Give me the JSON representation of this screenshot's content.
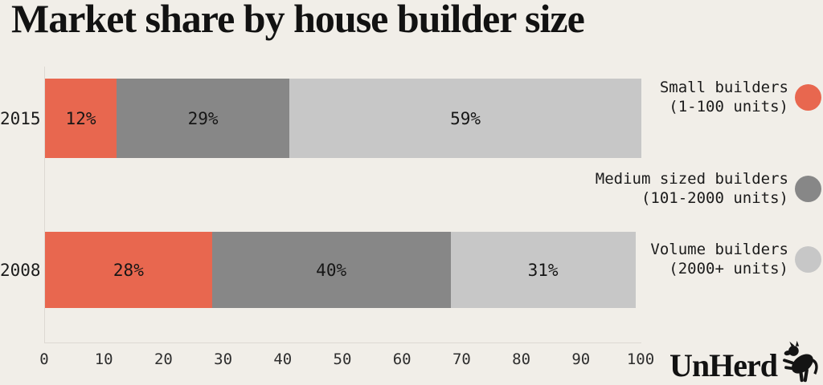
{
  "page": {
    "title": "Market share by house builder size",
    "background_color": "#F1EEE8"
  },
  "chart_data": {
    "type": "bar",
    "orientation": "horizontal",
    "stacked": true,
    "title": "Market share by house builder size",
    "categories": [
      "2015",
      "2008"
    ],
    "series": [
      {
        "name": "Small builders (1-100 units)",
        "color": "#E8674F",
        "values": [
          12,
          28
        ]
      },
      {
        "name": "Medium sized builders (101-2000 units)",
        "color": "#878787",
        "values": [
          29,
          40
        ]
      },
      {
        "name": "Volume builders (2000+ units)",
        "color": "#C7C7C7",
        "values": [
          59,
          31
        ]
      }
    ],
    "value_suffix": "%",
    "data_labels": [
      [
        "12%",
        "29%",
        "59%"
      ],
      [
        "28%",
        "40%",
        "31%"
      ]
    ],
    "xlabel": "",
    "ylabel": "",
    "xlim": [
      0,
      100
    ],
    "xticks": [
      0,
      10,
      20,
      30,
      40,
      50,
      60,
      70,
      80,
      90,
      100
    ],
    "grid": false,
    "legend_position": "right"
  },
  "legend": {
    "items": [
      {
        "line1": "Small builders",
        "line2": "(1-100 units)",
        "color": "#E8674F"
      },
      {
        "line1": "Medium sized builders",
        "line2": "(101-2000 units)",
        "color": "#878787"
      },
      {
        "line1": "Volume builders",
        "line2": "(2000+ units)",
        "color": "#C7C7C7"
      }
    ]
  },
  "branding": {
    "logo_text": "UnHerd"
  }
}
